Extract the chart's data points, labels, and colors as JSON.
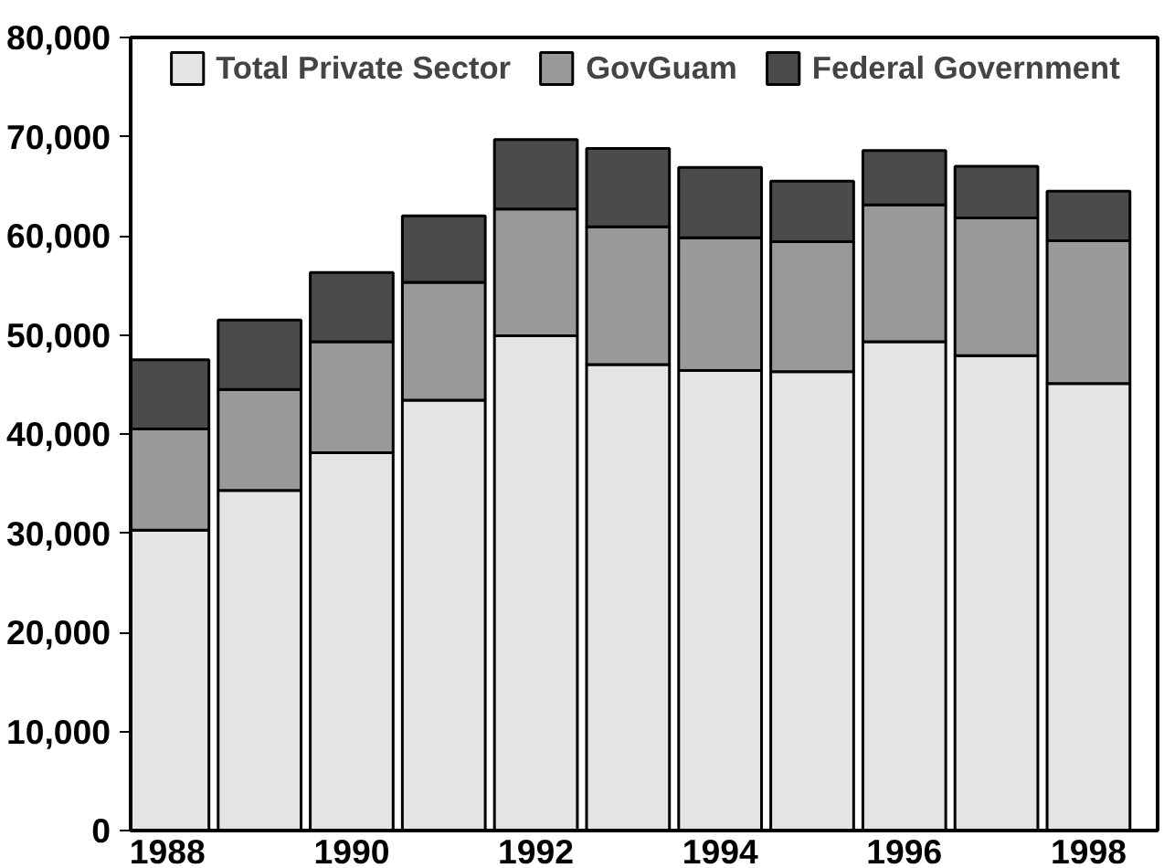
{
  "chart_data": {
    "type": "bar",
    "stacked": true,
    "x": [
      1988,
      1989,
      1990,
      1991,
      1992,
      1993,
      1994,
      1995,
      1996,
      1997,
      1998
    ],
    "xlim": [
      1987.6,
      1998.75
    ],
    "xticks": [
      1988,
      1990,
      1992,
      1994,
      1996,
      1998
    ],
    "ylim": [
      0,
      80000
    ],
    "yticks": [
      {
        "value": 0,
        "label": "0"
      },
      {
        "value": 10000,
        "label": "10,000"
      },
      {
        "value": 20000,
        "label": "20,000"
      },
      {
        "value": 30000,
        "label": "30,000"
      },
      {
        "value": 40000,
        "label": "40,000"
      },
      {
        "value": 50000,
        "label": "50,000"
      },
      {
        "value": 60000,
        "label": "60,000"
      },
      {
        "value": 70000,
        "label": "70,000"
      },
      {
        "value": 80000,
        "label": "80,000"
      }
    ],
    "series": [
      {
        "name": "Total Private Sector",
        "color": "#e4e4e4",
        "values": [
          30300,
          34300,
          38100,
          43400,
          49900,
          47000,
          46400,
          46300,
          49300,
          47900,
          45100
        ]
      },
      {
        "name": "GovGuam",
        "color": "#999999",
        "values": [
          10200,
          10200,
          11200,
          11900,
          12800,
          13900,
          13400,
          13100,
          13800,
          13900,
          14400
        ]
      },
      {
        "name": "Federal Government",
        "color": "#4b4b4b",
        "values": [
          7000,
          7000,
          7000,
          6700,
          7000,
          7900,
          7100,
          6100,
          5500,
          5200,
          5000
        ]
      }
    ],
    "grid": false,
    "legend": "top"
  }
}
